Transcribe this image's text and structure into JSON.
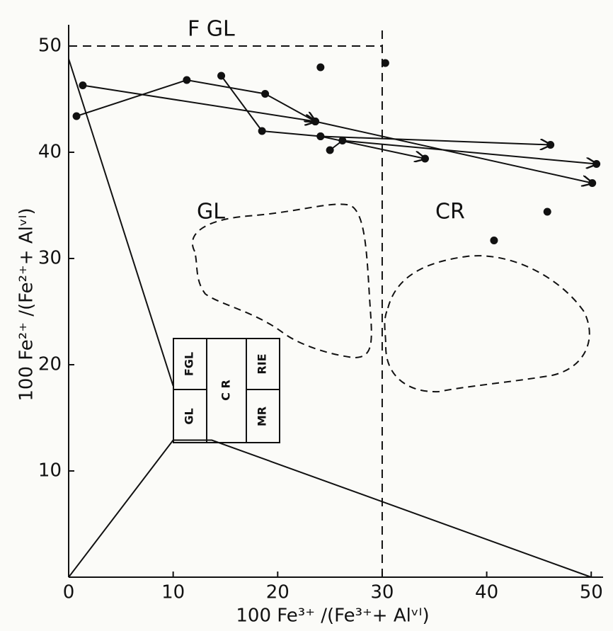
{
  "chart_data": {
    "type": "scatter",
    "x_label": "100 Fe³⁺ /(Fe³⁺+ Alᵛᴵ)",
    "y_label": "100 Fe²⁺ /(Fe²⁺+ Alᵛᴵ)",
    "xlim": [
      0,
      51
    ],
    "ylim": [
      0,
      52
    ],
    "xticks": [
      0,
      10,
      20,
      30,
      40,
      50
    ],
    "yticks": [
      10,
      20,
      30,
      40,
      50
    ],
    "color": "#111111",
    "annotations": [
      "F GL",
      "GL",
      "CR"
    ],
    "inset": [
      "FGL",
      "GL",
      "C R",
      "RIE",
      "MR"
    ],
    "series": [
      {
        "kind": "arrow",
        "x": [
          1.35,
          23.6
        ],
        "y": [
          46.3,
          42.9
        ]
      },
      {
        "kind": "arrow",
        "x": [
          0.75,
          11.3,
          18.8,
          23.6
        ],
        "y": [
          43.4,
          46.8,
          45.5,
          42.9
        ]
      },
      {
        "kind": "arrow",
        "x": [
          14.6,
          18.5,
          24.1,
          34.1
        ],
        "y": [
          47.2,
          42.0,
          41.5,
          39.4
        ]
      },
      {
        "kind": "arrow",
        "x": [
          24.1,
          46.1
        ],
        "y": [
          41.5,
          40.7
        ]
      },
      {
        "kind": "arrow",
        "x": [
          25.0,
          26.2,
          50.5
        ],
        "y": [
          40.2,
          41.1,
          38.9
        ]
      },
      {
        "kind": "arrow",
        "x": [
          23.6,
          50.1
        ],
        "y": [
          42.9,
          37.1
        ]
      },
      {
        "kind": "points",
        "x": [
          24.1,
          30.3,
          45.8,
          40.7
        ],
        "y": [
          48.0,
          48.4,
          34.4,
          31.7
        ]
      },
      {
        "kind": "line",
        "x": [
          0,
          10
        ],
        "y": [
          48.8,
          18
        ]
      },
      {
        "kind": "line",
        "x": [
          0,
          10,
          13.7,
          50
        ],
        "y": [
          0,
          12.9,
          12.9,
          0
        ]
      },
      {
        "kind": "dashed",
        "x": [
          0,
          30
        ],
        "y": [
          50,
          50
        ]
      },
      {
        "kind": "dashed",
        "x": [
          30,
          30
        ],
        "y": [
          0,
          52
        ]
      }
    ]
  }
}
